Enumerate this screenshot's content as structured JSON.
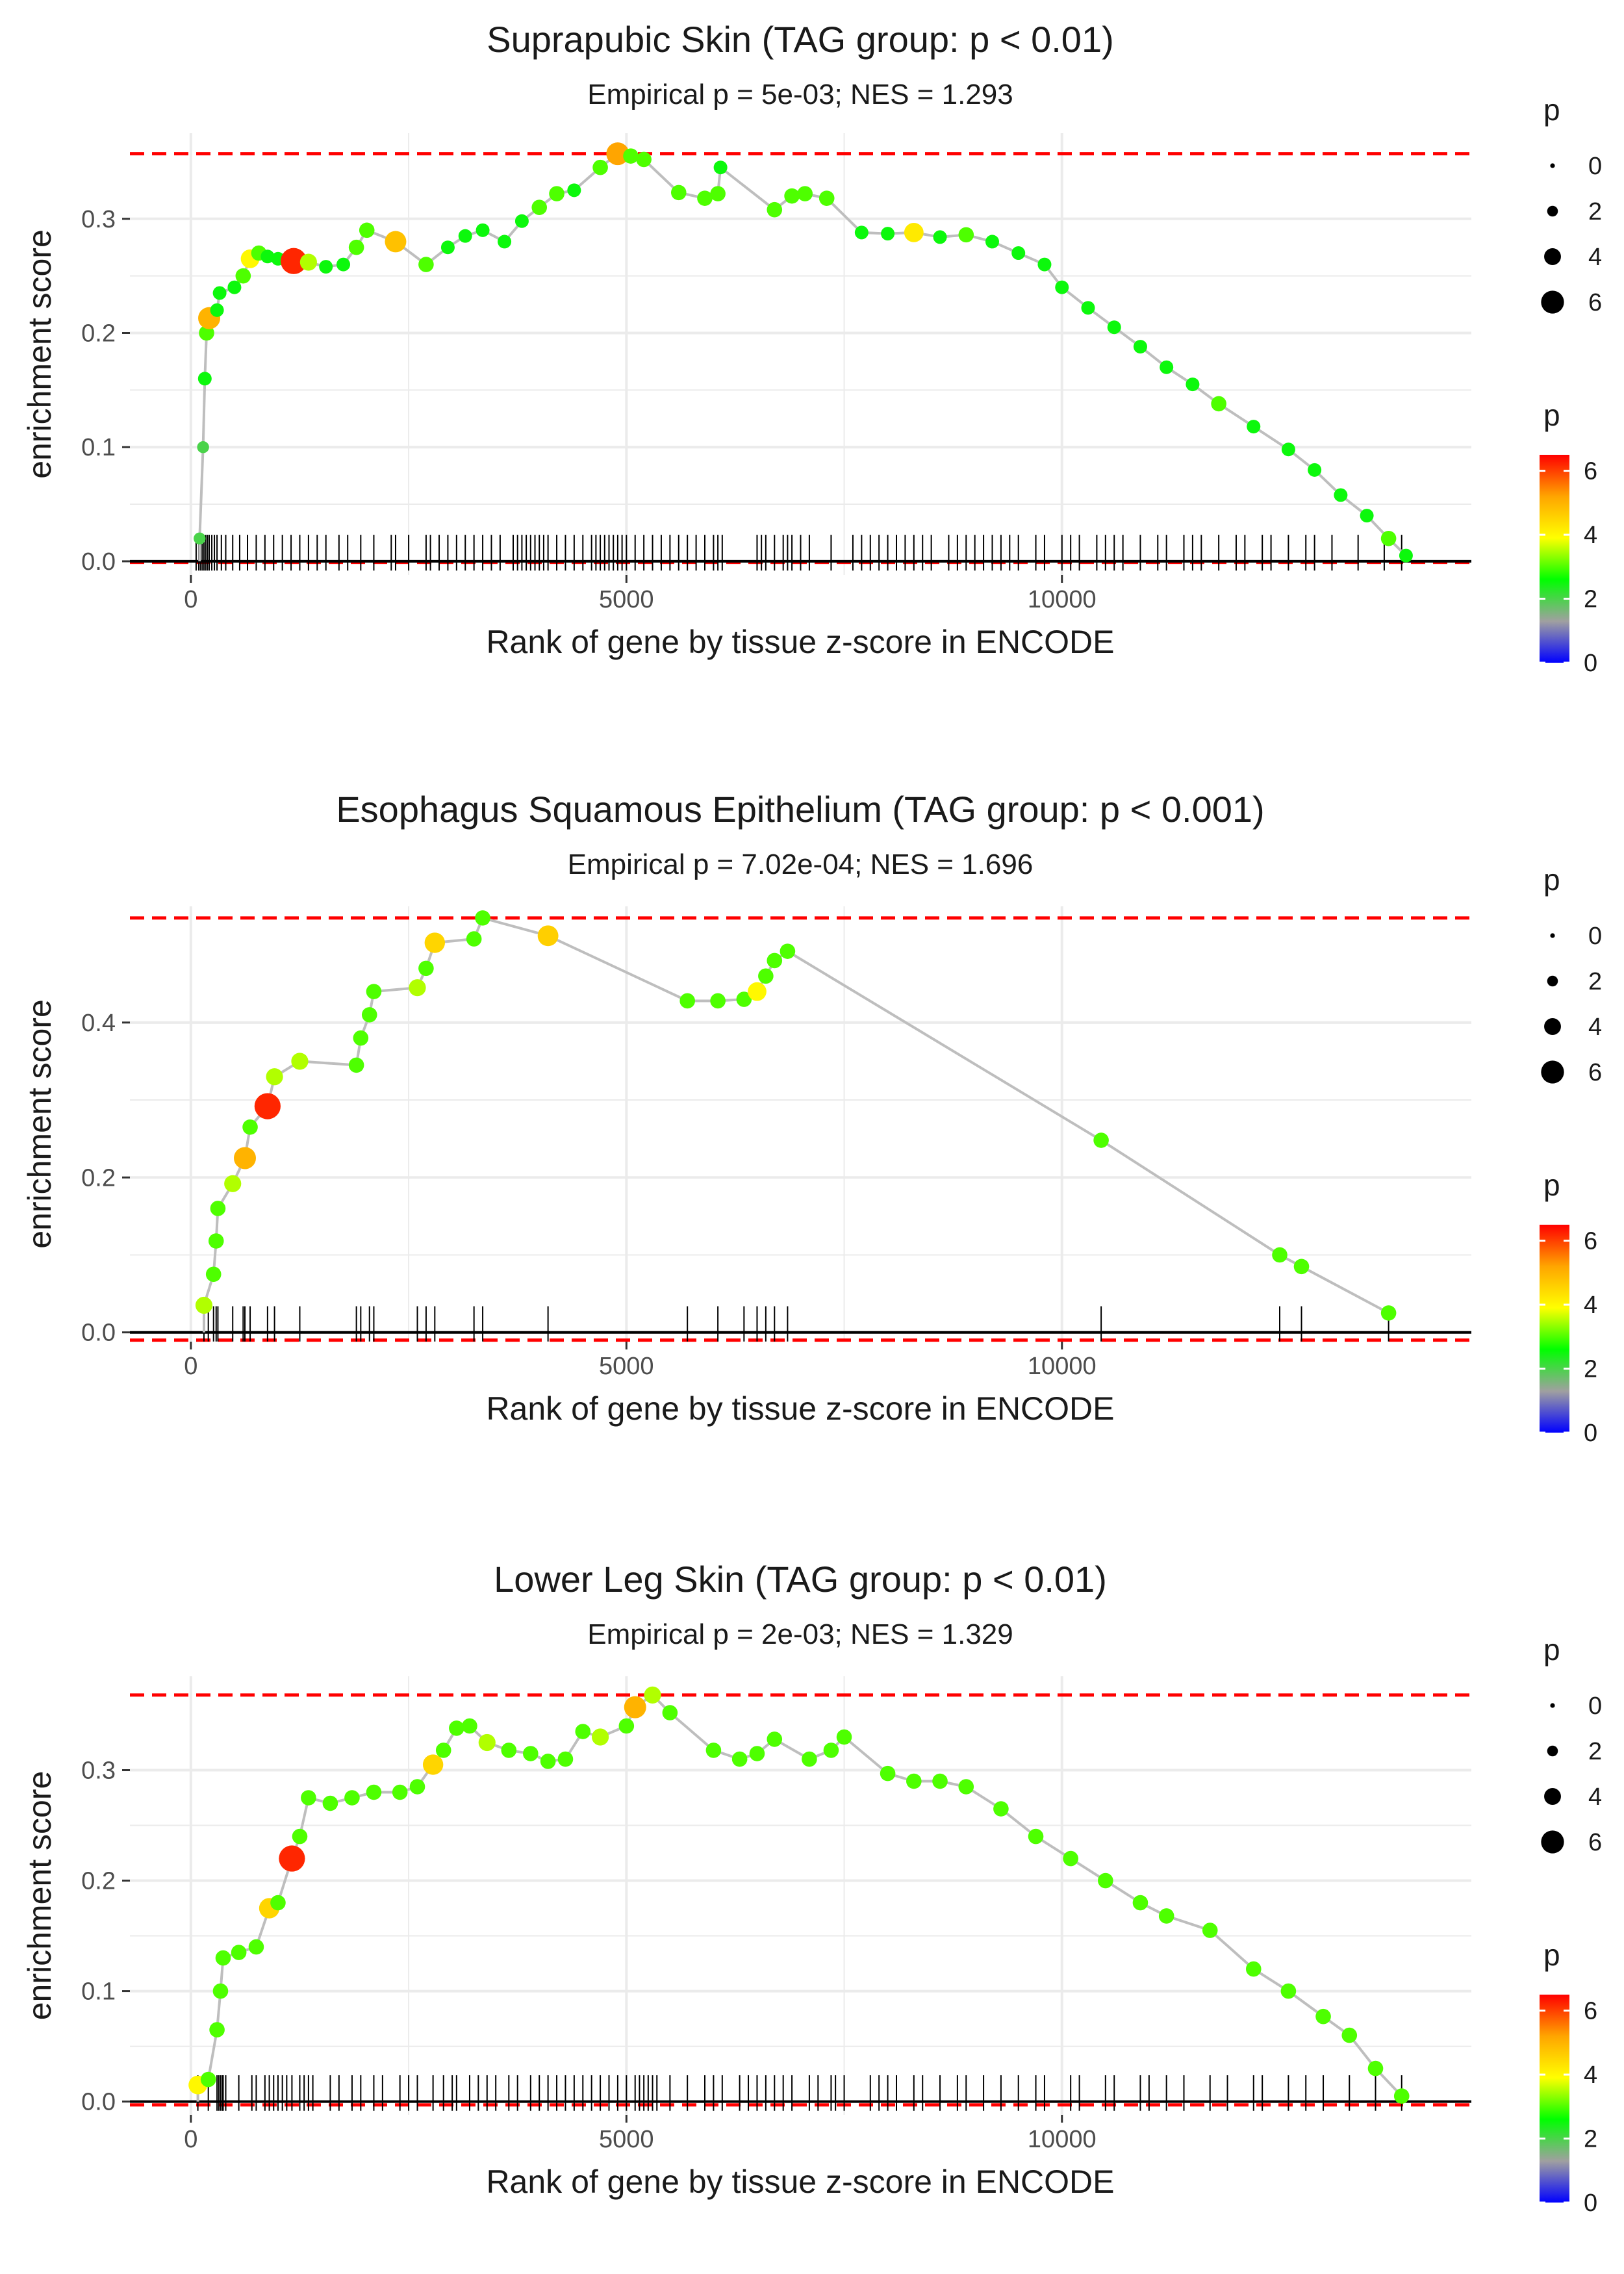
{
  "colors": {
    "background": "#ffffff",
    "grid": "#ebebeb",
    "reference_line": "#ff0000",
    "curve": "#bebebe",
    "rug": "#000000",
    "zero_line": "#000000",
    "colorscale": [
      "#0000ff",
      "#a0a0a0",
      "#00ff00",
      "#ffff00",
      "#ffa500",
      "#ff0000"
    ]
  },
  "chart_data": [
    {
      "type": "line",
      "title": "Suprapubic Skin (TAG group: p < 0.01)",
      "subtitle": "Empirical p = 5e-03; NES = 1.293",
      "xlabel": "Rank of gene by tissue z-score in ENCODE",
      "ylabel": "enrichment score",
      "xlim": [
        -700,
        14700
      ],
      "ylim": [
        -0.012,
        0.375
      ],
      "xticks": [
        0,
        5000,
        10000
      ],
      "xtick_labels": [
        "0",
        "5000",
        "10000"
      ],
      "yticks": [
        0.0,
        0.1,
        0.2,
        0.3
      ],
      "ytick_labels": [
        "0.0",
        "0.1",
        "0.2",
        "0.3"
      ],
      "max_es": 0.357,
      "min_es": -0.001,
      "legend_size": {
        "title": "p",
        "breaks": [
          0,
          2,
          4,
          6
        ],
        "labels": [
          "0",
          "2",
          "4",
          "6"
        ]
      },
      "legend_color": {
        "title": "p",
        "breaks": [
          0,
          2,
          4,
          6
        ],
        "labels": [
          "0",
          "2",
          "4",
          "6"
        ],
        "range": [
          0,
          6.5
        ]
      },
      "points": [
        [
          100,
          0.02,
          2
        ],
        [
          140,
          0.1,
          2
        ],
        [
          160,
          0.16,
          2.5
        ],
        [
          180,
          0.2,
          3
        ],
        [
          210,
          0.213,
          5
        ],
        [
          300,
          0.22,
          2.5
        ],
        [
          330,
          0.235,
          2.5
        ],
        [
          500,
          0.24,
          2.5
        ],
        [
          600,
          0.25,
          3
        ],
        [
          680,
          0.265,
          4
        ],
        [
          780,
          0.27,
          3
        ],
        [
          880,
          0.267,
          2.5
        ],
        [
          1000,
          0.265,
          2.5
        ],
        [
          1180,
          0.263,
          6.2
        ],
        [
          1350,
          0.262,
          3.5
        ],
        [
          1550,
          0.258,
          2.5
        ],
        [
          1750,
          0.26,
          2.5
        ],
        [
          1900,
          0.275,
          3
        ],
        [
          2020,
          0.29,
          3
        ],
        [
          2350,
          0.28,
          4.8
        ],
        [
          2700,
          0.26,
          3
        ],
        [
          2950,
          0.275,
          2.5
        ],
        [
          3150,
          0.285,
          2.5
        ],
        [
          3350,
          0.29,
          2.5
        ],
        [
          3600,
          0.28,
          2.5
        ],
        [
          3800,
          0.298,
          2.5
        ],
        [
          4000,
          0.31,
          3
        ],
        [
          4200,
          0.322,
          3
        ],
        [
          4400,
          0.325,
          2.5
        ],
        [
          4700,
          0.345,
          3
        ],
        [
          4900,
          0.357,
          5.2
        ],
        [
          5050,
          0.355,
          3
        ],
        [
          5200,
          0.352,
          3
        ],
        [
          5600,
          0.323,
          3
        ],
        [
          5900,
          0.318,
          3
        ],
        [
          6050,
          0.322,
          3
        ],
        [
          6080,
          0.345,
          2.5
        ],
        [
          6700,
          0.308,
          3
        ],
        [
          6900,
          0.32,
          3
        ],
        [
          7050,
          0.322,
          3
        ],
        [
          7300,
          0.318,
          3
        ],
        [
          7700,
          0.288,
          2.5
        ],
        [
          8000,
          0.287,
          2.5
        ],
        [
          8300,
          0.288,
          4.2
        ],
        [
          8600,
          0.284,
          2.5
        ],
        [
          8900,
          0.286,
          3
        ],
        [
          9200,
          0.28,
          2.5
        ],
        [
          9500,
          0.27,
          2.5
        ],
        [
          9800,
          0.26,
          2.5
        ],
        [
          10000,
          0.24,
          2.5
        ],
        [
          10300,
          0.222,
          2.5
        ],
        [
          10600,
          0.205,
          2.5
        ],
        [
          10900,
          0.188,
          2.5
        ],
        [
          11200,
          0.17,
          2.5
        ],
        [
          11500,
          0.155,
          2.5
        ],
        [
          11800,
          0.138,
          3
        ],
        [
          12200,
          0.118,
          2.5
        ],
        [
          12600,
          0.098,
          2.5
        ],
        [
          12900,
          0.08,
          2.5
        ],
        [
          13200,
          0.058,
          2.5
        ],
        [
          13500,
          0.04,
          2.5
        ],
        [
          13750,
          0.02,
          3
        ],
        [
          13950,
          0.005,
          2.5
        ]
      ],
      "rug": [
        60,
        90,
        110,
        130,
        150,
        170,
        190,
        210,
        240,
        270,
        300,
        350,
        400,
        480,
        560,
        650,
        750,
        850,
        950,
        1050,
        1150,
        1250,
        1350,
        1450,
        1550,
        1700,
        1800,
        1950,
        2100,
        2300,
        2350,
        2500,
        2700,
        2750,
        2850,
        2950,
        3050,
        3150,
        3250,
        3350,
        3450,
        3550,
        3700,
        3750,
        3800,
        3850,
        3900,
        3950,
        4000,
        4050,
        4100,
        4200,
        4300,
        4400,
        4500,
        4600,
        4650,
        4700,
        4750,
        4800,
        4850,
        4900,
        4950,
        5000,
        5100,
        5200,
        5300,
        5400,
        5500,
        5600,
        5700,
        5800,
        5900,
        6000,
        6050,
        6100,
        6500,
        6550,
        6600,
        6700,
        6800,
        6850,
        6900,
        7000,
        7100,
        7350,
        7600,
        7700,
        7800,
        7900,
        8000,
        8100,
        8200,
        8300,
        8400,
        8500,
        8700,
        8800,
        8900,
        9000,
        9100,
        9200,
        9300,
        9400,
        9500,
        9700,
        9800,
        10000,
        10100,
        10200,
        10400,
        10500,
        10600,
        10700,
        10900,
        11100,
        11200,
        11400,
        11500,
        11600,
        11800,
        12000,
        12100,
        12300,
        12400,
        12600,
        12800,
        12900,
        13100,
        13400,
        13700,
        13900
      ]
    },
    {
      "type": "line",
      "title": "Esophagus Squamous Epithelium (TAG group: p < 0.001)",
      "subtitle": "Empirical p = 7.02e-04; NES = 1.696",
      "xlabel": "Rank of gene by tissue z-score in ENCODE",
      "ylabel": "enrichment score",
      "xlim": [
        -700,
        14700
      ],
      "ylim": [
        -0.012,
        0.55
      ],
      "xticks": [
        0,
        5000,
        10000
      ],
      "xtick_labels": [
        "0",
        "5000",
        "10000"
      ],
      "yticks": [
        0.0,
        0.2,
        0.4
      ],
      "ytick_labels": [
        "0.0",
        "0.2",
        "0.4"
      ],
      "max_es": 0.535,
      "min_es": -0.01,
      "legend_size": {
        "title": "p",
        "breaks": [
          0,
          2,
          4,
          6
        ],
        "labels": [
          "0",
          "2",
          "4",
          "6"
        ]
      },
      "legend_color": {
        "title": "p",
        "breaks": [
          0,
          2,
          4,
          6
        ],
        "labels": [
          "0",
          "2",
          "4",
          "6"
        ],
        "range": [
          0,
          6.5
        ]
      },
      "points": [
        [
          150,
          0.035,
          3.5
        ],
        [
          260,
          0.075,
          3
        ],
        [
          290,
          0.118,
          3
        ],
        [
          310,
          0.16,
          3
        ],
        [
          480,
          0.192,
          3.5
        ],
        [
          620,
          0.225,
          5
        ],
        [
          680,
          0.265,
          3
        ],
        [
          880,
          0.292,
          6.2
        ],
        [
          960,
          0.33,
          3.5
        ],
        [
          1250,
          0.35,
          3.5
        ],
        [
          1900,
          0.345,
          3
        ],
        [
          1950,
          0.38,
          3
        ],
        [
          2050,
          0.41,
          3
        ],
        [
          2100,
          0.44,
          3
        ],
        [
          2600,
          0.445,
          3.5
        ],
        [
          2700,
          0.47,
          3
        ],
        [
          2800,
          0.503,
          4.5
        ],
        [
          3250,
          0.508,
          3
        ],
        [
          3350,
          0.535,
          3
        ],
        [
          4100,
          0.512,
          4.6
        ],
        [
          5700,
          0.428,
          3
        ],
        [
          6050,
          0.428,
          3
        ],
        [
          6350,
          0.43,
          3
        ],
        [
          6500,
          0.44,
          4
        ],
        [
          6600,
          0.46,
          3
        ],
        [
          6700,
          0.48,
          3
        ],
        [
          6850,
          0.492,
          3
        ],
        [
          10450,
          0.248,
          3
        ],
        [
          12500,
          0.1,
          3
        ],
        [
          12750,
          0.085,
          3
        ],
        [
          13750,
          0.025,
          3
        ]
      ],
      "rug": [
        150,
        200,
        260,
        290,
        310,
        480,
        600,
        620,
        680,
        880,
        960,
        1250,
        1900,
        1950,
        2050,
        2100,
        2600,
        2700,
        2800,
        3250,
        3350,
        4100,
        5700,
        6050,
        6350,
        6500,
        6600,
        6700,
        6850,
        10450,
        12500,
        12750,
        13750
      ]
    },
    {
      "type": "line",
      "title": "Lower Leg Skin (TAG group: p < 0.01)",
      "subtitle": "Empirical p = 2e-03; NES = 1.329",
      "xlabel": "Rank of gene by tissue z-score in ENCODE",
      "ylabel": "enrichment score",
      "xlim": [
        -700,
        14700
      ],
      "ylim": [
        -0.012,
        0.385
      ],
      "xticks": [
        0,
        5000,
        10000
      ],
      "xtick_labels": [
        "0",
        "5000",
        "10000"
      ],
      "yticks": [
        0.0,
        0.1,
        0.2,
        0.3
      ],
      "ytick_labels": [
        "0.0",
        "0.1",
        "0.2",
        "0.3"
      ],
      "max_es": 0.368,
      "min_es": -0.003,
      "legend_size": {
        "title": "p",
        "breaks": [
          0,
          2,
          4,
          6
        ],
        "labels": [
          "0",
          "2",
          "4",
          "6"
        ]
      },
      "legend_color": {
        "title": "p",
        "breaks": [
          0,
          2,
          4,
          6
        ],
        "labels": [
          "0",
          "2",
          "4",
          "6"
        ],
        "range": [
          0,
          6.5
        ]
      },
      "points": [
        [
          80,
          0.015,
          4
        ],
        [
          200,
          0.02,
          3
        ],
        [
          300,
          0.065,
          3
        ],
        [
          340,
          0.1,
          3
        ],
        [
          370,
          0.13,
          3
        ],
        [
          550,
          0.135,
          3
        ],
        [
          750,
          0.14,
          3
        ],
        [
          900,
          0.175,
          4.5
        ],
        [
          1000,
          0.18,
          3
        ],
        [
          1160,
          0.22,
          6.2
        ],
        [
          1250,
          0.24,
          3
        ],
        [
          1350,
          0.275,
          3
        ],
        [
          1600,
          0.27,
          3
        ],
        [
          1850,
          0.275,
          3
        ],
        [
          2100,
          0.28,
          3
        ],
        [
          2400,
          0.28,
          3
        ],
        [
          2600,
          0.285,
          3
        ],
        [
          2780,
          0.305,
          4.5
        ],
        [
          2900,
          0.318,
          3
        ],
        [
          3050,
          0.338,
          3
        ],
        [
          3200,
          0.34,
          3
        ],
        [
          3400,
          0.325,
          3.5
        ],
        [
          3650,
          0.318,
          3
        ],
        [
          3900,
          0.315,
          3
        ],
        [
          4100,
          0.308,
          3
        ],
        [
          4300,
          0.31,
          3
        ],
        [
          4500,
          0.335,
          3
        ],
        [
          4700,
          0.33,
          3.5
        ],
        [
          5000,
          0.34,
          3
        ],
        [
          5100,
          0.357,
          5
        ],
        [
          5300,
          0.368,
          3.5
        ],
        [
          5500,
          0.352,
          3
        ],
        [
          6000,
          0.318,
          3
        ],
        [
          6300,
          0.31,
          3
        ],
        [
          6500,
          0.315,
          3
        ],
        [
          6700,
          0.328,
          3
        ],
        [
          7100,
          0.31,
          3
        ],
        [
          7350,
          0.318,
          3
        ],
        [
          7500,
          0.33,
          3
        ],
        [
          8000,
          0.297,
          3
        ],
        [
          8300,
          0.29,
          3
        ],
        [
          8600,
          0.29,
          3
        ],
        [
          8900,
          0.285,
          3
        ],
        [
          9300,
          0.265,
          3
        ],
        [
          9700,
          0.24,
          3
        ],
        [
          10100,
          0.22,
          3
        ],
        [
          10500,
          0.2,
          3
        ],
        [
          10900,
          0.18,
          3
        ],
        [
          11200,
          0.168,
          3
        ],
        [
          11700,
          0.155,
          3
        ],
        [
          12200,
          0.12,
          3
        ],
        [
          12600,
          0.1,
          3
        ],
        [
          13000,
          0.077,
          3
        ],
        [
          13300,
          0.06,
          3
        ],
        [
          13600,
          0.03,
          3
        ],
        [
          13900,
          0.005,
          3
        ]
      ],
      "rug": [
        80,
        200,
        300,
        320,
        340,
        360,
        370,
        400,
        550,
        700,
        750,
        850,
        900,
        950,
        1000,
        1050,
        1100,
        1160,
        1250,
        1300,
        1350,
        1400,
        1600,
        1700,
        1850,
        1950,
        2100,
        2200,
        2400,
        2500,
        2600,
        2780,
        2900,
        3000,
        3050,
        3200,
        3300,
        3400,
        3500,
        3650,
        3750,
        3900,
        4000,
        4100,
        4200,
        4300,
        4400,
        4500,
        4600,
        4700,
        4800,
        4900,
        5000,
        5100,
        5150,
        5200,
        5250,
        5300,
        5350,
        5500,
        5700,
        5900,
        6000,
        6100,
        6300,
        6400,
        6500,
        6600,
        6700,
        6800,
        6900,
        7100,
        7200,
        7350,
        7400,
        7500,
        7800,
        7900,
        8000,
        8100,
        8300,
        8400,
        8600,
        8800,
        8900,
        9100,
        9300,
        9500,
        9700,
        9800,
        10100,
        10200,
        10500,
        10600,
        10900,
        11000,
        11200,
        11400,
        11700,
        11900,
        12200,
        12300,
        12600,
        12800,
        13000,
        13300,
        13600,
        13900
      ]
    }
  ]
}
